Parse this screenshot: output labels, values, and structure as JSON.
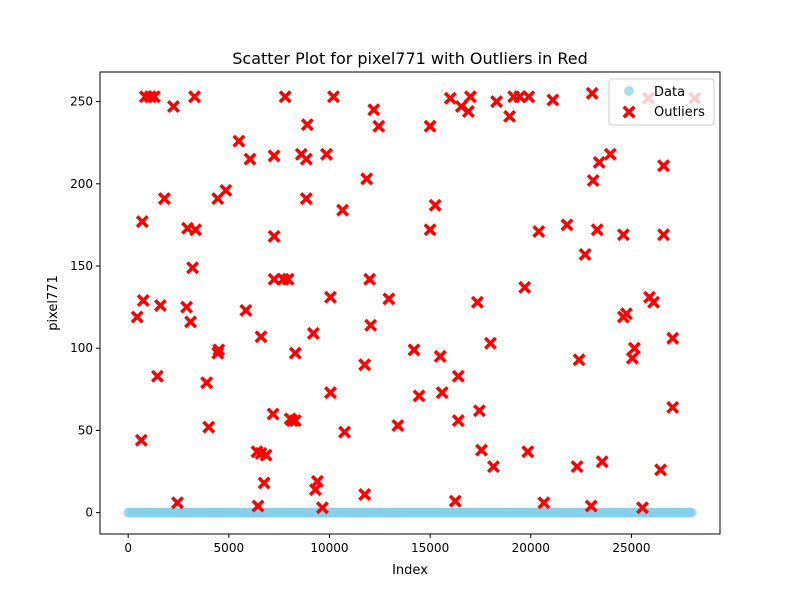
{
  "chart_data": {
    "type": "scatter",
    "title": "Scatter Plot for pixel771 with Outliers in Red",
    "xlabel": "Index",
    "ylabel": "pixel771",
    "xlim": [
      -1400,
      29400
    ],
    "ylim": [
      -13,
      268
    ],
    "xticks": [
      0,
      5000,
      10000,
      15000,
      20000,
      25000
    ],
    "yticks": [
      0,
      50,
      100,
      150,
      200,
      250
    ],
    "grid": false,
    "legend_position": "top-right",
    "series": [
      {
        "name": "Data",
        "color": "#87ceeb",
        "marker": "circle",
        "x_range": [
          0,
          27999
        ],
        "y_value": 0
      },
      {
        "name": "Outliers",
        "color": "#ff0000",
        "marker": "x-filled",
        "points": [
          [
            450,
            119
          ],
          [
            650,
            44
          ],
          [
            700,
            177
          ],
          [
            750,
            129
          ],
          [
            850,
            253
          ],
          [
            1100,
            253
          ],
          [
            1300,
            253
          ],
          [
            1450,
            83
          ],
          [
            1600,
            126
          ],
          [
            1800,
            191
          ],
          [
            2250,
            247
          ],
          [
            2450,
            6
          ],
          [
            2900,
            125
          ],
          [
            2950,
            173
          ],
          [
            3100,
            116
          ],
          [
            3200,
            149
          ],
          [
            3300,
            253
          ],
          [
            3350,
            172
          ],
          [
            3900,
            79
          ],
          [
            4000,
            52
          ],
          [
            4450,
            191
          ],
          [
            4450,
            97
          ],
          [
            4500,
            99
          ],
          [
            4850,
            196
          ],
          [
            5500,
            226
          ],
          [
            5850,
            123
          ],
          [
            6050,
            215
          ],
          [
            6400,
            37
          ],
          [
            6450,
            4
          ],
          [
            6600,
            107
          ],
          [
            6600,
            36
          ],
          [
            6750,
            18
          ],
          [
            6850,
            35
          ],
          [
            7200,
            60
          ],
          [
            7250,
            168
          ],
          [
            7250,
            142
          ],
          [
            7250,
            217
          ],
          [
            7700,
            142
          ],
          [
            7800,
            253
          ],
          [
            7950,
            142
          ],
          [
            8050,
            57
          ],
          [
            8150,
            56
          ],
          [
            8300,
            56
          ],
          [
            8300,
            97
          ],
          [
            8600,
            218
          ],
          [
            8850,
            215
          ],
          [
            8850,
            191
          ],
          [
            8900,
            236
          ],
          [
            9200,
            109
          ],
          [
            9300,
            14
          ],
          [
            9400,
            19
          ],
          [
            9650,
            3
          ],
          [
            9850,
            218
          ],
          [
            10050,
            131
          ],
          [
            10050,
            73
          ],
          [
            10200,
            253
          ],
          [
            10650,
            184
          ],
          [
            10750,
            49
          ],
          [
            11750,
            90
          ],
          [
            11750,
            11
          ],
          [
            11850,
            203
          ],
          [
            12000,
            142
          ],
          [
            12050,
            114
          ],
          [
            12200,
            245
          ],
          [
            12450,
            235
          ],
          [
            12950,
            130
          ],
          [
            13400,
            53
          ],
          [
            14200,
            99
          ],
          [
            14450,
            71
          ],
          [
            15000,
            235
          ],
          [
            15000,
            172
          ],
          [
            15250,
            187
          ],
          [
            15500,
            95
          ],
          [
            15600,
            73
          ],
          [
            16000,
            252
          ],
          [
            16250,
            7
          ],
          [
            16400,
            83
          ],
          [
            16400,
            56
          ],
          [
            16550,
            247
          ],
          [
            16900,
            244
          ],
          [
            17000,
            253
          ],
          [
            17350,
            128
          ],
          [
            17450,
            62
          ],
          [
            17550,
            38
          ],
          [
            18000,
            103
          ],
          [
            18150,
            28
          ],
          [
            18300,
            250
          ],
          [
            18950,
            241
          ],
          [
            19150,
            253
          ],
          [
            19450,
            253
          ],
          [
            19700,
            137
          ],
          [
            19850,
            37
          ],
          [
            19900,
            253
          ],
          [
            20400,
            171
          ],
          [
            20650,
            6
          ],
          [
            21100,
            251
          ],
          [
            21800,
            175
          ],
          [
            22300,
            28
          ],
          [
            22400,
            93
          ],
          [
            22700,
            157
          ],
          [
            23000,
            4
          ],
          [
            23050,
            255
          ],
          [
            23100,
            202
          ],
          [
            23300,
            172
          ],
          [
            23400,
            213
          ],
          [
            23550,
            31
          ],
          [
            23950,
            218
          ],
          [
            24600,
            169
          ],
          [
            24600,
            119
          ],
          [
            24750,
            121
          ],
          [
            25050,
            94
          ],
          [
            25150,
            100
          ],
          [
            25550,
            3
          ],
          [
            25850,
            252
          ],
          [
            25900,
            131
          ],
          [
            26100,
            128
          ],
          [
            26450,
            26
          ],
          [
            26600,
            169
          ],
          [
            26600,
            211
          ],
          [
            27050,
            106
          ],
          [
            27050,
            64
          ],
          [
            28150,
            252
          ]
        ]
      }
    ]
  }
}
